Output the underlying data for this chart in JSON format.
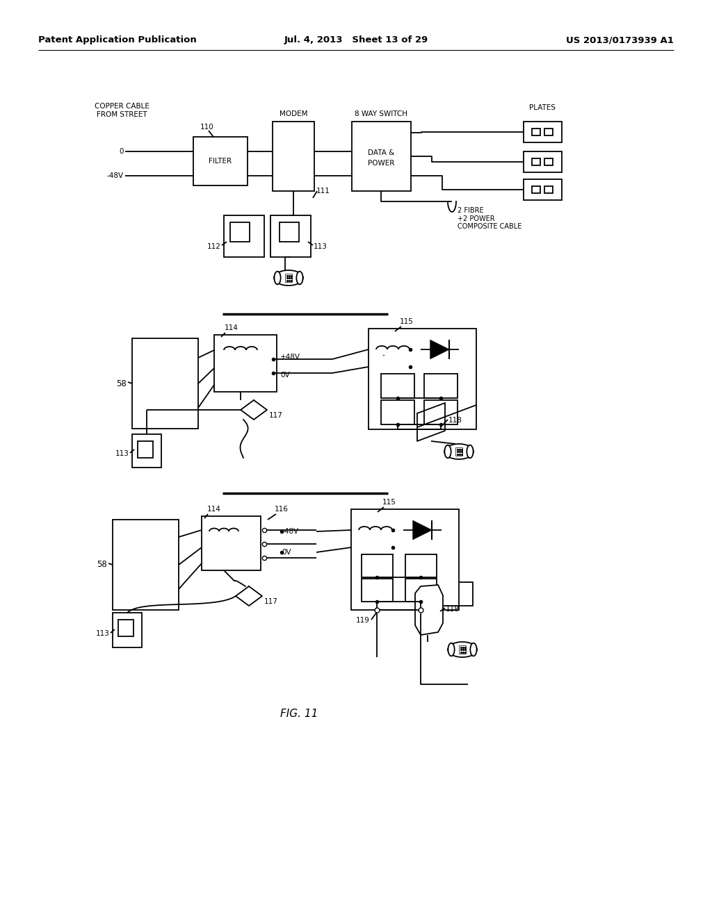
{
  "bg": "#ffffff",
  "header_left": "Patent Application Publication",
  "header_mid": "Jul. 4, 2013   Sheet 13 of 29",
  "header_right": "US 2013/0173939 A1",
  "fig_label": "FIG. 11"
}
